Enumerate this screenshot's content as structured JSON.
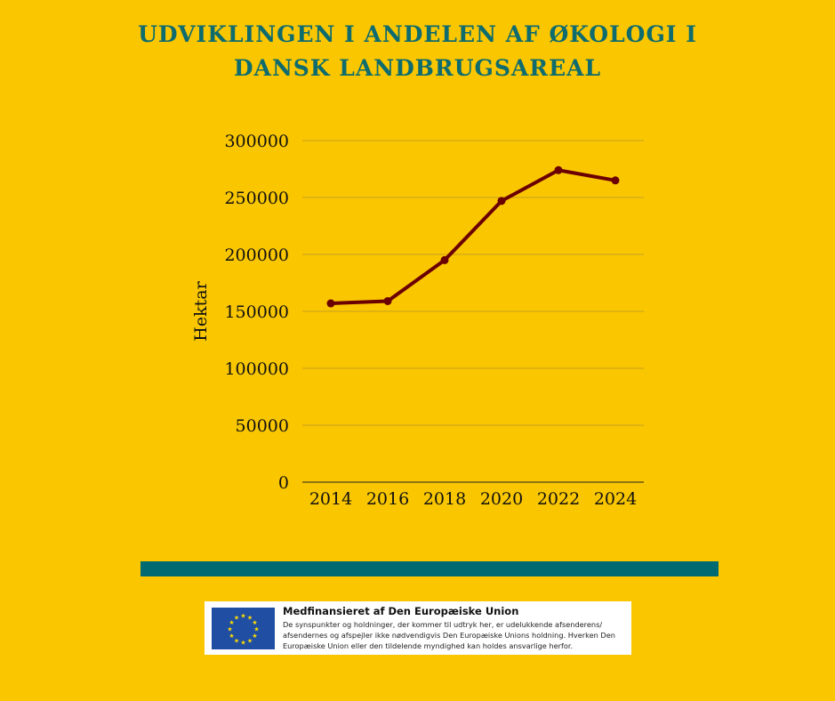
{
  "chart_data": {
    "type": "line",
    "title": "UDVIKLINGEN I ANDELEN AF ØKOLOGI I DANSK LANDBRUGSAREAL",
    "title_lines": [
      "UDVIKLINGEN I ANDELEN AF ØKOLOGI I",
      "DANSK LANDBRUGSAREAL"
    ],
    "xlabel": "",
    "ylabel": "Hektar",
    "categories": [
      "2014",
      "2016",
      "2018",
      "2020",
      "2022",
      "2024"
    ],
    "values": [
      157000,
      159000,
      195000,
      247000,
      274000,
      265000
    ],
    "ylim": [
      0,
      300000
    ],
    "yticks": [
      "0",
      "50000",
      "100000",
      "150000",
      "200000",
      "250000",
      "300000"
    ],
    "grid": true,
    "line_color": "#6b0000",
    "gridline_color": "#c9a020"
  },
  "colors": {
    "background": "#f9c600",
    "title": "#0e6b6e",
    "band": "#006a72"
  },
  "eu": {
    "heading": "Medfinansieret af Den Europæiske Union",
    "disclaimer": "De synspunkter og holdninger, der kommer til udtryk her, er udelukkende afsenderens/ afsendernes og afspejler ikke nødvendigvis Den Europæiske Unions holdning. Hverken Den Europæiske Union eller den tildelende myndighed kan holdes ansvarlige herfor.",
    "flag_icon": "eu-flag"
  }
}
